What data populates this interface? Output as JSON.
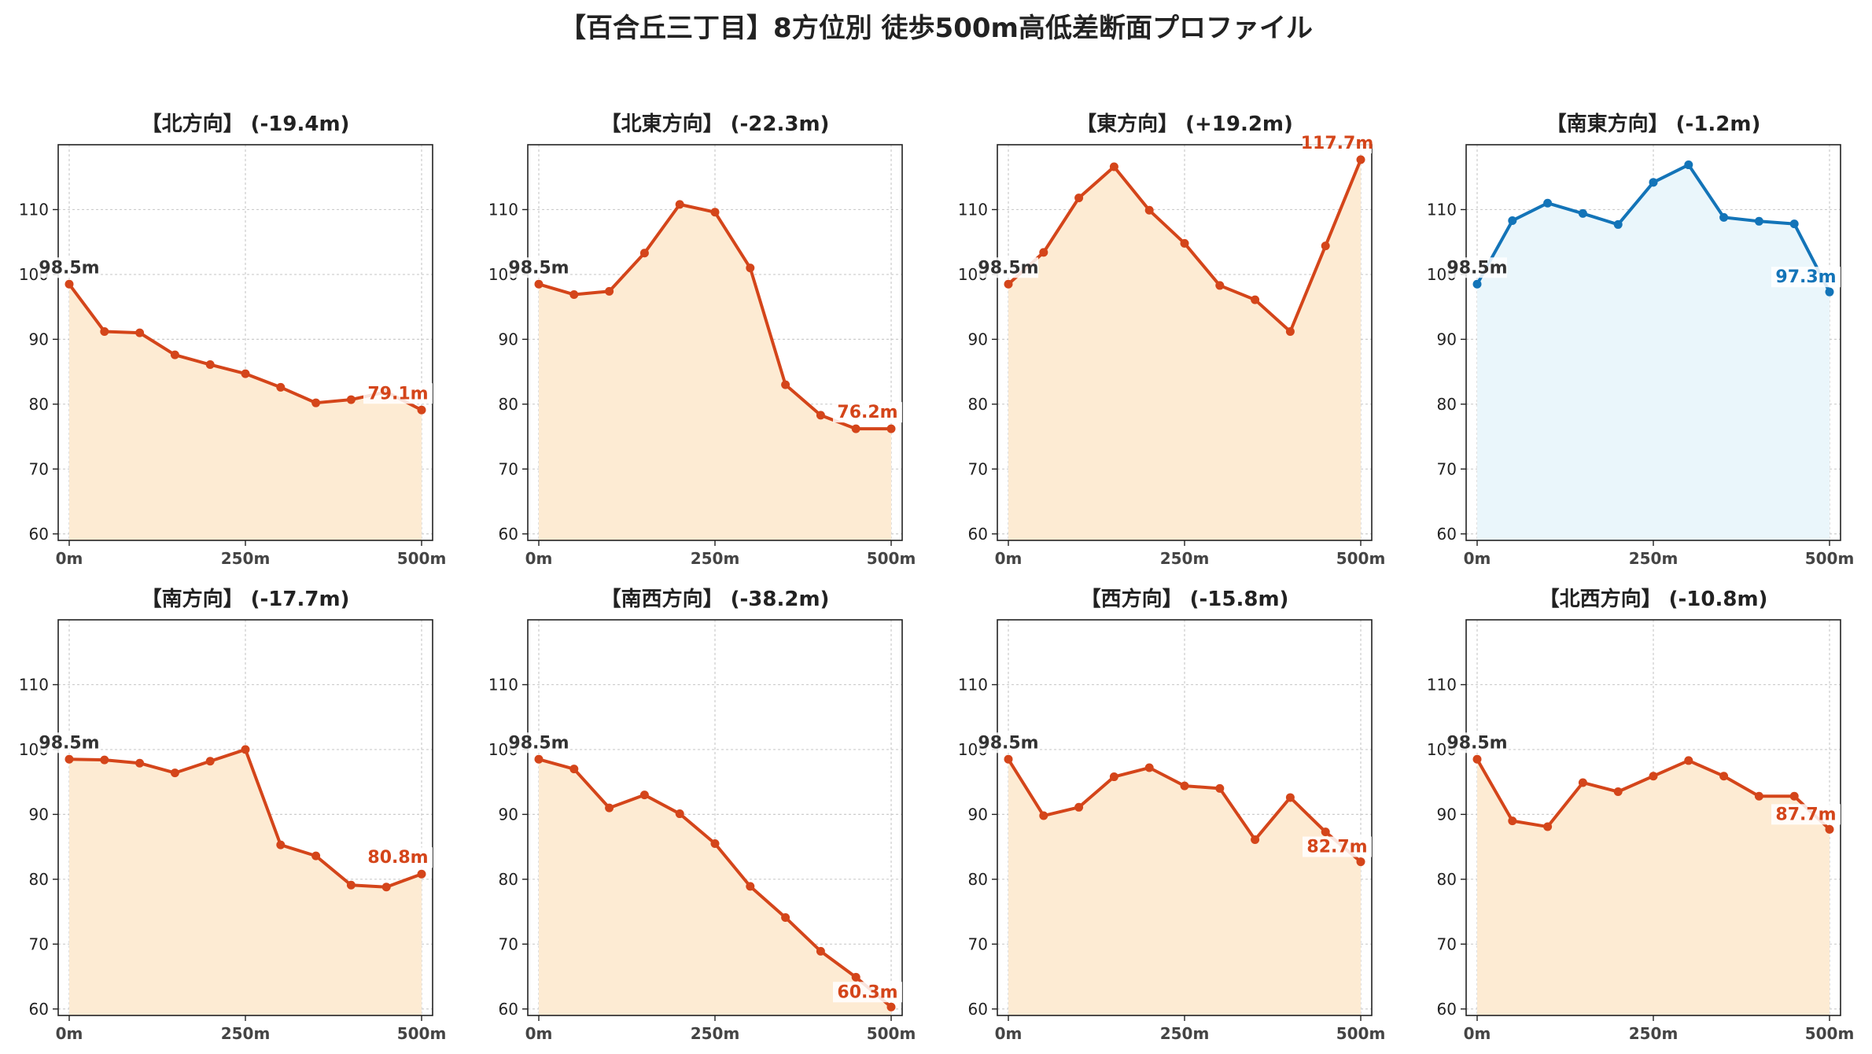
{
  "title": "【百合丘三丁目】8方位別 徒歩500m高低差断面プロファイル",
  "colors": {
    "descent": "#d4451a",
    "descent_fill": "#fdebd3",
    "flat": "#1374b8",
    "flat_fill": "#eaf6fb",
    "start_label": "#333333",
    "grid": "#cccccc"
  },
  "chart_data": [
    {
      "type": "area",
      "title": "【北方向】 (-19.4m)",
      "x": [
        0,
        50,
        100,
        150,
        200,
        250,
        300,
        350,
        400,
        450,
        500
      ],
      "values": [
        98.5,
        91.2,
        91.0,
        87.6,
        86.1,
        84.7,
        82.6,
        80.2,
        80.7,
        81.9,
        79.1
      ],
      "start_label": "98.5m",
      "end_label": "79.1m",
      "color": "descent",
      "xticks": [
        "0m",
        "250m",
        "500m"
      ],
      "yticks": [
        60,
        70,
        80,
        90,
        100,
        110
      ],
      "ylim": [
        59,
        120
      ],
      "grid": true
    },
    {
      "type": "area",
      "title": "【北東方向】 (-22.3m)",
      "x": [
        0,
        50,
        100,
        150,
        200,
        250,
        300,
        350,
        400,
        450,
        500
      ],
      "values": [
        98.5,
        96.9,
        97.4,
        103.3,
        110.8,
        109.6,
        101.0,
        83.0,
        78.3,
        76.2,
        76.2
      ],
      "start_label": "98.5m",
      "end_label": "76.2m",
      "color": "descent",
      "xticks": [
        "0m",
        "250m",
        "500m"
      ],
      "yticks": [
        60,
        70,
        80,
        90,
        100,
        110
      ],
      "ylim": [
        59,
        120
      ],
      "grid": true
    },
    {
      "type": "area",
      "title": "【東方向】 (+19.2m)",
      "x": [
        0,
        50,
        100,
        150,
        200,
        250,
        300,
        350,
        400,
        450,
        500
      ],
      "values": [
        98.5,
        103.4,
        111.8,
        116.6,
        109.9,
        104.8,
        98.3,
        96.1,
        91.2,
        104.4,
        117.7
      ],
      "start_label": "98.5m",
      "end_label": "117.7m",
      "color": "descent",
      "xticks": [
        "0m",
        "250m",
        "500m"
      ],
      "yticks": [
        60,
        70,
        80,
        90,
        100,
        110
      ],
      "ylim": [
        59,
        120
      ],
      "grid": true
    },
    {
      "type": "area",
      "title": "【南東方向】 (-1.2m)",
      "x": [
        0,
        50,
        100,
        150,
        200,
        250,
        300,
        350,
        400,
        450,
        500
      ],
      "values": [
        98.5,
        108.3,
        111.0,
        109.4,
        107.7,
        114.2,
        116.9,
        108.8,
        108.2,
        107.8,
        97.3
      ],
      "start_label": "98.5m",
      "end_label": "97.3m",
      "color": "flat",
      "xticks": [
        "0m",
        "250m",
        "500m"
      ],
      "yticks": [
        60,
        70,
        80,
        90,
        100,
        110
      ],
      "ylim": [
        59,
        120
      ],
      "grid": true
    },
    {
      "type": "area",
      "title": "【南方向】 (-17.7m)",
      "x": [
        0,
        50,
        100,
        150,
        200,
        250,
        300,
        350,
        400,
        450,
        500
      ],
      "values": [
        98.5,
        98.4,
        97.9,
        96.4,
        98.2,
        100.0,
        85.3,
        83.6,
        79.1,
        78.8,
        80.8
      ],
      "start_label": "98.5m",
      "end_label": "80.8m",
      "color": "descent",
      "xticks": [
        "0m",
        "250m",
        "500m"
      ],
      "yticks": [
        60,
        70,
        80,
        90,
        100,
        110
      ],
      "ylim": [
        59,
        120
      ],
      "grid": true
    },
    {
      "type": "area",
      "title": "【南西方向】 (-38.2m)",
      "x": [
        0,
        50,
        100,
        150,
        200,
        250,
        300,
        350,
        400,
        450,
        500
      ],
      "values": [
        98.5,
        97.0,
        91.0,
        93.0,
        90.1,
        85.5,
        78.9,
        74.1,
        68.9,
        64.9,
        60.3
      ],
      "start_label": "98.5m",
      "end_label": "60.3m",
      "color": "descent",
      "xticks": [
        "0m",
        "250m",
        "500m"
      ],
      "yticks": [
        60,
        70,
        80,
        90,
        100,
        110
      ],
      "ylim": [
        59,
        120
      ],
      "grid": true
    },
    {
      "type": "area",
      "title": "【西方向】 (-15.8m)",
      "x": [
        0,
        50,
        100,
        150,
        200,
        250,
        300,
        350,
        400,
        450,
        500
      ],
      "values": [
        98.5,
        89.8,
        91.1,
        95.8,
        97.2,
        94.4,
        94.0,
        86.1,
        92.6,
        87.3,
        82.7
      ],
      "start_label": "98.5m",
      "end_label": "82.7m",
      "color": "descent",
      "xticks": [
        "0m",
        "250m",
        "500m"
      ],
      "yticks": [
        60,
        70,
        80,
        90,
        100,
        110
      ],
      "ylim": [
        59,
        120
      ],
      "grid": true
    },
    {
      "type": "area",
      "title": "【北西方向】 (-10.8m)",
      "x": [
        0,
        50,
        100,
        150,
        200,
        250,
        300,
        350,
        400,
        450,
        500
      ],
      "values": [
        98.5,
        89.0,
        88.1,
        94.9,
        93.5,
        95.9,
        98.3,
        95.9,
        92.8,
        92.8,
        87.7
      ],
      "start_label": "98.5m",
      "end_label": "87.7m",
      "color": "descent",
      "xticks": [
        "0m",
        "250m",
        "500m"
      ],
      "yticks": [
        60,
        70,
        80,
        90,
        100,
        110
      ],
      "ylim": [
        59,
        120
      ],
      "grid": true
    }
  ]
}
